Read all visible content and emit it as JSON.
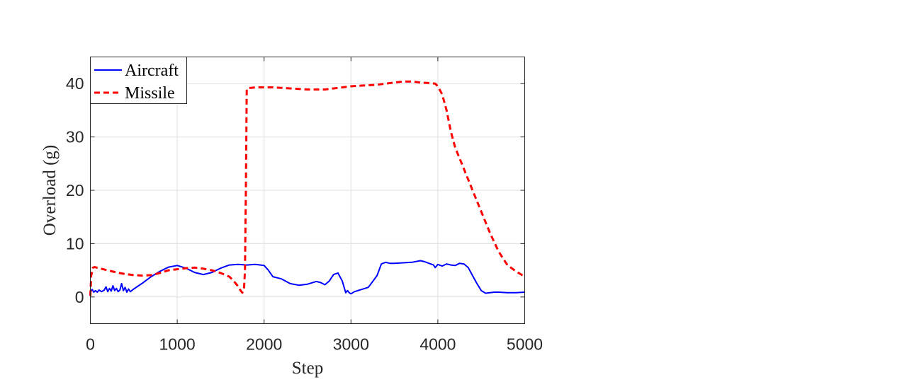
{
  "chart_data": {
    "type": "line",
    "xlabel": "Step",
    "ylabel": "Overload (g)",
    "xlim": [
      0,
      5000
    ],
    "ylim": [
      -5,
      45
    ],
    "xticks": [
      0,
      1000,
      2000,
      3000,
      4000,
      5000
    ],
    "yticks": [
      0,
      10,
      20,
      30,
      40
    ],
    "xtick_labels": [
      "0",
      "1000",
      "2000",
      "3000",
      "4000",
      "5000"
    ],
    "ytick_labels": [
      "0",
      "10",
      "20",
      "30",
      "40"
    ],
    "grid": true,
    "legend": {
      "placement": "top-left",
      "entries": [
        "Aircraft",
        "Missile"
      ]
    },
    "series": [
      {
        "name": "Aircraft",
        "color": "#0000ff",
        "style": "solid",
        "x": [
          0,
          10,
          20,
          40,
          60,
          80,
          100,
          130,
          160,
          180,
          200,
          220,
          240,
          260,
          280,
          300,
          320,
          340,
          360,
          380,
          400,
          420,
          440,
          460,
          500,
          600,
          700,
          800,
          900,
          1000,
          1100,
          1200,
          1300,
          1400,
          1500,
          1600,
          1700,
          1800,
          1900,
          2000,
          2050,
          2100,
          2150,
          2200,
          2300,
          2400,
          2500,
          2600,
          2650,
          2700,
          2750,
          2800,
          2850,
          2900,
          2940,
          2960,
          2980,
          3000,
          3020,
          3040,
          3100,
          3200,
          3300,
          3350,
          3400,
          3450,
          3500,
          3600,
          3700,
          3800,
          3850,
          3900,
          3950,
          3970,
          4000,
          4050,
          4100,
          4150,
          4200,
          4250,
          4300,
          4350,
          4400,
          4450,
          4500,
          4550,
          4600,
          4650,
          4700,
          4800,
          4900,
          5000
        ],
        "values": [
          1.3,
          1.1,
          1.4,
          0.9,
          1.2,
          0.9,
          1.3,
          1.0,
          1.3,
          1.9,
          1.0,
          1.6,
          1.1,
          2.1,
          1.2,
          1.6,
          1.0,
          1.3,
          2.5,
          1.2,
          1.8,
          0.9,
          1.5,
          1.0,
          1.5,
          2.6,
          3.8,
          4.8,
          5.6,
          5.9,
          5.4,
          4.6,
          4.2,
          4.6,
          5.4,
          6.0,
          6.1,
          6.0,
          6.1,
          5.9,
          5.0,
          3.8,
          3.6,
          3.4,
          2.5,
          2.2,
          2.4,
          2.9,
          2.7,
          2.3,
          3.0,
          4.2,
          4.5,
          3.0,
          0.8,
          1.2,
          0.8,
          0.6,
          0.8,
          1.0,
          1.3,
          1.8,
          4.0,
          6.2,
          6.5,
          6.3,
          6.3,
          6.4,
          6.5,
          6.8,
          6.6,
          6.3,
          6.0,
          5.5,
          6.1,
          5.8,
          6.2,
          6.0,
          5.9,
          6.3,
          6.2,
          5.5,
          4.0,
          2.5,
          1.2,
          0.7,
          0.8,
          0.9,
          0.9,
          0.8,
          0.8,
          0.9
        ]
      },
      {
        "name": "Missile",
        "color": "#ff0000",
        "style": "dashed",
        "x": [
          0,
          10,
          30,
          50,
          100,
          200,
          300,
          400,
          500,
          600,
          700,
          800,
          900,
          1000,
          1100,
          1200,
          1300,
          1400,
          1500,
          1600,
          1650,
          1700,
          1730,
          1750,
          1770,
          1780,
          1790,
          1800,
          1820,
          1850,
          1900,
          2000,
          2100,
          2200,
          2300,
          2400,
          2500,
          2600,
          2700,
          2800,
          2900,
          3000,
          3100,
          3200,
          3300,
          3400,
          3500,
          3600,
          3700,
          3800,
          3900,
          3970,
          4000,
          4050,
          4100,
          4150,
          4200,
          4300,
          4400,
          4500,
          4600,
          4700,
          4800,
          4900,
          5000
        ],
        "values": [
          0.2,
          4.0,
          5.5,
          5.6,
          5.4,
          5.0,
          4.6,
          4.3,
          4.1,
          4.0,
          4.1,
          4.5,
          5.0,
          5.2,
          5.4,
          5.5,
          5.3,
          5.0,
          4.5,
          3.8,
          3.0,
          2.0,
          1.2,
          0.8,
          1.8,
          5.0,
          20.0,
          39.0,
          39.2,
          39.2,
          39.3,
          39.3,
          39.3,
          39.2,
          39.1,
          39.0,
          38.9,
          38.9,
          38.9,
          39.1,
          39.3,
          39.5,
          39.6,
          39.7,
          39.8,
          40.0,
          40.2,
          40.4,
          40.4,
          40.2,
          40.1,
          40.0,
          39.5,
          38.0,
          35.0,
          31.0,
          28.0,
          24.0,
          20.0,
          16.0,
          12.0,
          8.5,
          6.0,
          4.8,
          3.8
        ]
      }
    ]
  }
}
